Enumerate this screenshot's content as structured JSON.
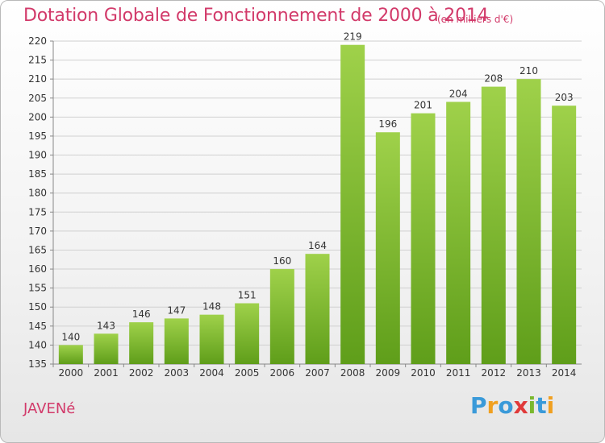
{
  "title": "Dotation Globale de Fonctionnement de 2000 à 2014",
  "unit": "(en milliers d'€)",
  "commune": "JAVENé",
  "logo": {
    "text": "Proxiti",
    "letters": [
      {
        "ch": "P",
        "color": "#3a9ad9"
      },
      {
        "ch": "r",
        "color": "#f0a020"
      },
      {
        "ch": "o",
        "color": "#3a9ad9"
      },
      {
        "ch": "x",
        "color": "#e03a3a"
      },
      {
        "ch": "i",
        "color": "#7ab82e"
      },
      {
        "ch": "t",
        "color": "#3a9ad9"
      },
      {
        "ch": "i",
        "color": "#f0a020"
      }
    ]
  },
  "chart_data": {
    "type": "bar",
    "title": "Dotation Globale de Fonctionnement de 2000 à 2014",
    "subtitle": "(en milliers d'€)",
    "categories": [
      "2000",
      "2001",
      "2002",
      "2003",
      "2004",
      "2005",
      "2006",
      "2007",
      "2008",
      "2009",
      "2010",
      "2011",
      "2012",
      "2013",
      "2014"
    ],
    "values": [
      140,
      143,
      146,
      147,
      148,
      151,
      160,
      164,
      219,
      196,
      201,
      204,
      208,
      210,
      203
    ],
    "ylim": [
      135,
      220
    ],
    "yticks": [
      135,
      140,
      145,
      150,
      155,
      160,
      165,
      170,
      175,
      180,
      185,
      190,
      195,
      200,
      205,
      210,
      215,
      220
    ],
    "grid": true,
    "bar_color": "#8cc43c",
    "xlabel": "",
    "ylabel": ""
  }
}
